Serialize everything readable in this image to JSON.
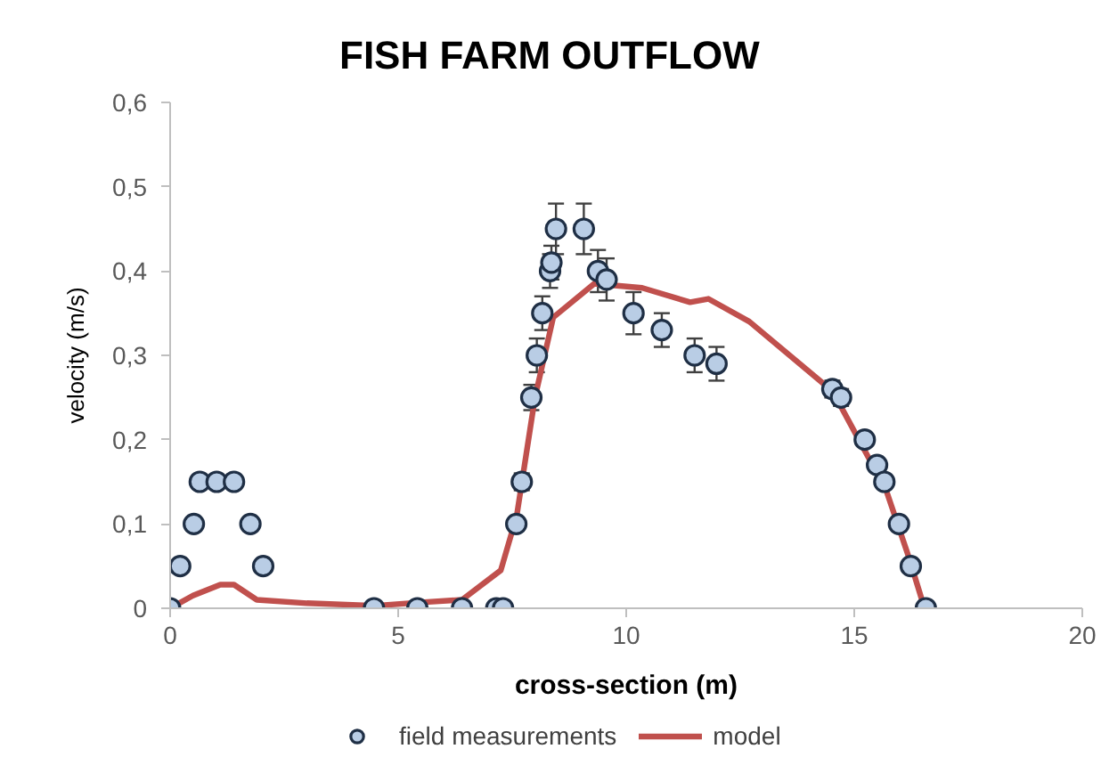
{
  "chart_data": {
    "type": "scatter",
    "title": "FISH FARM OUTFLOW",
    "xlabel": "cross-section (m)",
    "ylabel": "velocity (m/s)",
    "xlim": [
      0,
      20
    ],
    "xticks": [
      0,
      5,
      10,
      15,
      20
    ],
    "ylim": [
      0,
      0.6
    ],
    "yticks": [
      0,
      {
        "value": 0.1,
        "label": "0,1"
      },
      {
        "value": 0.2,
        "label": "0,2"
      },
      {
        "value": 0.3,
        "label": "0,3"
      },
      {
        "value": 0.4,
        "label": "0,4"
      },
      {
        "value": 0.5,
        "label": "0,5"
      },
      {
        "value": 0.6,
        "label": "0,6"
      }
    ],
    "grid": false,
    "legend": "bottom",
    "series": [
      {
        "name": "field measurements",
        "marker": "circle",
        "color": "#b9cde5",
        "x": [
          0,
          0.22,
          0.52,
          0.65,
          1.02,
          1.4,
          1.76,
          2.04,
          4.47,
          5.42,
          6.4,
          7.15,
          7.3,
          7.59,
          7.71,
          7.92,
          8.04,
          8.16,
          8.33,
          8.36,
          8.46,
          9.07,
          9.38,
          9.57,
          10.16,
          10.78,
          11.5,
          11.98,
          14.52,
          14.71,
          15.23,
          15.5,
          15.66,
          15.98,
          16.24,
          16.57
        ],
        "values": [
          0,
          0.05,
          0.1,
          0.15,
          0.15,
          0.15,
          0.1,
          0.05,
          0,
          0,
          0,
          0,
          0,
          0.1,
          0.15,
          0.25,
          0.3,
          0.35,
          0.4,
          0.41,
          0.45,
          0.45,
          0.4,
          0.39,
          0.35,
          0.33,
          0.3,
          0.29,
          0.26,
          0.25,
          0.2,
          0.17,
          0.15,
          0.1,
          0.05,
          0
        ],
        "errors": [
          null,
          null,
          null,
          null,
          null,
          null,
          null,
          null,
          null,
          null,
          null,
          null,
          null,
          null,
          0.01,
          0.015,
          0.02,
          0.02,
          0.02,
          0.02,
          0.03,
          0.03,
          0.025,
          0.025,
          0.025,
          0.02,
          0.02,
          0.02,
          0.01,
          0.01,
          null,
          null,
          null,
          null,
          null,
          null
        ]
      },
      {
        "name": "model",
        "type": "line",
        "color": "#c0504d",
        "x": [
          0,
          0.5,
          1.1,
          1.4,
          1.9,
          3,
          4.5,
          5.5,
          6.4,
          7.25,
          7.6,
          8.0,
          8.4,
          9.3,
          10.35,
          11.4,
          11.8,
          12.7,
          14.4,
          14.65,
          15.2,
          15.7,
          16.2,
          16.54
        ],
        "values": [
          0,
          0.015,
          0.028,
          0.028,
          0.01,
          0.006,
          0.003,
          0.007,
          0.01,
          0.045,
          0.11,
          0.25,
          0.345,
          0.385,
          0.38,
          0.363,
          0.367,
          0.34,
          0.263,
          0.245,
          0.19,
          0.14,
          0.06,
          0
        ]
      }
    ]
  }
}
